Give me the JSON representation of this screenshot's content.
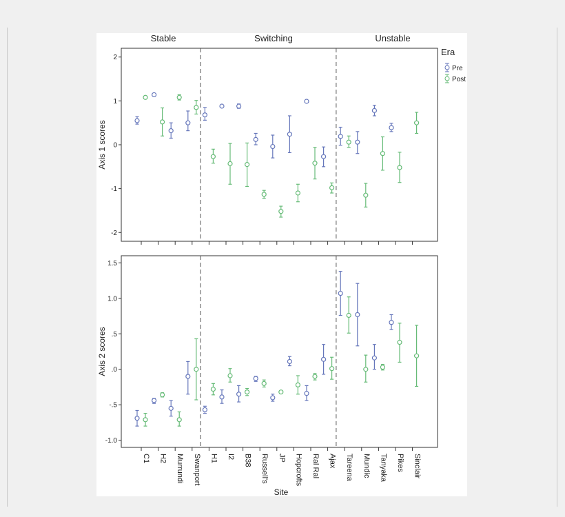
{
  "chart_data": [
    {
      "type": "scatter",
      "subtype": "error-bar",
      "ylabel": "Axis 1 scores",
      "ylim": [
        -2.2,
        2.2
      ],
      "yticks": [
        -2,
        -1,
        0,
        1,
        2
      ],
      "ytick_labels": [
        "-2",
        "-1",
        "0",
        "1",
        "2"
      ],
      "groups": [
        {
          "label": "Stable",
          "sites": [
            "C1",
            "H2",
            "Murrundi",
            "Swanport"
          ]
        },
        {
          "label": "Switching",
          "sites": [
            "H1",
            "I2",
            "B38",
            "Russell's",
            "JP",
            "Hopcrofts",
            "Ral Ral",
            "Ajax"
          ]
        },
        {
          "label": "Unstable",
          "sites": [
            "Tareena",
            "Mundic",
            "Tanyaka",
            "Pikes",
            "Sinclair"
          ]
        }
      ],
      "legend": {
        "title": "Era",
        "position": "top-right",
        "entries": [
          "Pre",
          "Post"
        ]
      },
      "series": [
        {
          "name": "Pre",
          "color": "#6677bb",
          "points": [
            {
              "site": "C1",
              "mean": 0.55,
              "low": 0.47,
              "high": 0.64
            },
            {
              "site": "H2",
              "mean": 1.14,
              "low": 1.11,
              "high": 1.17
            },
            {
              "site": "Murrundi",
              "mean": 0.32,
              "low": 0.15,
              "high": 0.5
            },
            {
              "site": "Swanport",
              "mean": 0.5,
              "low": 0.32,
              "high": 0.77
            },
            {
              "site": "H1",
              "mean": 0.68,
              "low": 0.56,
              "high": 0.85
            },
            {
              "site": "I2",
              "mean": 0.88,
              "low": 0.85,
              "high": 0.91
            },
            {
              "site": "B38",
              "mean": 0.88,
              "low": 0.83,
              "high": 0.93
            },
            {
              "site": "Russell's",
              "mean": 0.12,
              "low": 0.0,
              "high": 0.26
            },
            {
              "site": "JP",
              "mean": -0.04,
              "low": -0.3,
              "high": 0.22
            },
            {
              "site": "Hopcrofts",
              "mean": 0.24,
              "low": -0.18,
              "high": 0.66
            },
            {
              "site": "Ral Ral",
              "mean": 0.99,
              "low": 0.96,
              "high": 1.02
            },
            {
              "site": "Ajax",
              "mean": -0.27,
              "low": -0.5,
              "high": -0.05
            },
            {
              "site": "Tareena",
              "mean": 0.19,
              "low": -0.01,
              "high": 0.4
            },
            {
              "site": "Mundic",
              "mean": 0.06,
              "low": -0.2,
              "high": 0.3
            },
            {
              "site": "Tanyaka",
              "mean": 0.78,
              "low": 0.66,
              "high": 0.9
            },
            {
              "site": "Pikes",
              "mean": 0.39,
              "low": 0.3,
              "high": 0.49
            }
          ]
        },
        {
          "name": "Post",
          "color": "#66bb77",
          "points": [
            {
              "site": "C1",
              "mean": 1.08,
              "low": 1.05,
              "high": 1.11
            },
            {
              "site": "H2",
              "mean": 0.52,
              "low": 0.2,
              "high": 0.84
            },
            {
              "site": "Murrundi",
              "mean": 1.08,
              "low": 1.02,
              "high": 1.14
            },
            {
              "site": "Swanport",
              "mean": 0.85,
              "low": 0.7,
              "high": 1.01
            },
            {
              "site": "H1",
              "mean": -0.27,
              "low": -0.42,
              "high": -0.1
            },
            {
              "site": "I2",
              "mean": -0.43,
              "low": -0.9,
              "high": 0.03
            },
            {
              "site": "B38",
              "mean": -0.45,
              "low": -0.95,
              "high": 0.04
            },
            {
              "site": "Russell's",
              "mean": -1.13,
              "low": -1.22,
              "high": -1.04
            },
            {
              "site": "JP",
              "mean": -1.52,
              "low": -1.65,
              "high": -1.4
            },
            {
              "site": "Hopcrofts",
              "mean": -1.1,
              "low": -1.3,
              "high": -0.9
            },
            {
              "site": "Ral Ral",
              "mean": -0.42,
              "low": -0.78,
              "high": -0.06
            },
            {
              "site": "Ajax",
              "mean": -0.98,
              "low": -1.1,
              "high": -0.87
            },
            {
              "site": "Tareena",
              "mean": 0.06,
              "low": -0.06,
              "high": 0.2
            },
            {
              "site": "Mundic",
              "mean": -1.15,
              "low": -1.42,
              "high": -0.88
            },
            {
              "site": "Tanyaka",
              "mean": -0.2,
              "low": -0.58,
              "high": 0.18
            },
            {
              "site": "Pikes",
              "mean": -0.52,
              "low": -0.86,
              "high": -0.17
            },
            {
              "site": "Sinclair",
              "mean": 0.5,
              "low": 0.26,
              "high": 0.74
            }
          ]
        }
      ]
    },
    {
      "type": "scatter",
      "subtype": "error-bar",
      "xlabel": "Site",
      "ylabel": "Axis 2 scores",
      "ylim": [
        -1.1,
        1.6
      ],
      "yticks": [
        -1.0,
        -0.5,
        0.0,
        0.5,
        1.0,
        1.5
      ],
      "ytick_labels": [
        "-1.0",
        "-.5",
        ".0",
        ".5",
        "1.0",
        "1.5"
      ],
      "categories": [
        "C1",
        "H2",
        "Murrundi",
        "Swanport",
        "H1",
        "I2",
        "B38",
        "Russell's",
        "JP",
        "Hopcrofts",
        "Ral Ral",
        "Ajax",
        "Tareena",
        "Mundic",
        "Tanyaka",
        "Pikes",
        "Sinclair"
      ],
      "series": [
        {
          "name": "Pre",
          "color": "#6677bb",
          "points": [
            {
              "site": "C1",
              "mean": -0.69,
              "low": -0.8,
              "high": -0.58
            },
            {
              "site": "H2",
              "mean": -0.44,
              "low": -0.48,
              "high": -0.41
            },
            {
              "site": "Murrundi",
              "mean": -0.55,
              "low": -0.66,
              "high": -0.44
            },
            {
              "site": "Swanport",
              "mean": -0.1,
              "low": -0.35,
              "high": 0.11
            },
            {
              "site": "H1",
              "mean": -0.57,
              "low": -0.62,
              "high": -0.52
            },
            {
              "site": "I2",
              "mean": -0.39,
              "low": -0.48,
              "high": -0.29
            },
            {
              "site": "B38",
              "mean": -0.35,
              "low": -0.46,
              "high": -0.23
            },
            {
              "site": "Russell's",
              "mean": -0.13,
              "low": -0.17,
              "high": -0.1
            },
            {
              "site": "JP",
              "mean": -0.4,
              "low": -0.45,
              "high": -0.35
            },
            {
              "site": "Hopcrofts",
              "mean": 0.11,
              "low": 0.05,
              "high": 0.18
            },
            {
              "site": "Ral Ral",
              "mean": -0.34,
              "low": -0.44,
              "high": -0.23
            },
            {
              "site": "Ajax",
              "mean": 0.14,
              "low": -0.07,
              "high": 0.35
            },
            {
              "site": "Tareena",
              "mean": 1.07,
              "low": 0.76,
              "high": 1.38
            },
            {
              "site": "Mundic",
              "mean": 0.77,
              "low": 0.33,
              "high": 1.21
            },
            {
              "site": "Tanyaka",
              "mean": 0.16,
              "low": 0.0,
              "high": 0.35
            },
            {
              "site": "Pikes",
              "mean": 0.66,
              "low": 0.56,
              "high": 0.77
            }
          ]
        },
        {
          "name": "Post",
          "color": "#66bb77",
          "points": [
            {
              "site": "C1",
              "mean": -0.71,
              "low": -0.8,
              "high": -0.62
            },
            {
              "site": "H2",
              "mean": -0.36,
              "low": -0.39,
              "high": -0.33
            },
            {
              "site": "Murrundi",
              "mean": -0.71,
              "low": -0.8,
              "high": -0.6
            },
            {
              "site": "Swanport",
              "mean": 0.0,
              "low": -0.43,
              "high": 0.43
            },
            {
              "site": "H1",
              "mean": -0.28,
              "low": -0.36,
              "high": -0.2
            },
            {
              "site": "I2",
              "mean": -0.09,
              "low": -0.18,
              "high": 0.01
            },
            {
              "site": "B38",
              "mean": -0.32,
              "low": -0.37,
              "high": -0.27
            },
            {
              "site": "Russell's",
              "mean": -0.2,
              "low": -0.25,
              "high": -0.15
            },
            {
              "site": "JP",
              "mean": -0.32,
              "low": -0.34,
              "high": -0.3
            },
            {
              "site": "Hopcrofts",
              "mean": -0.22,
              "low": -0.35,
              "high": -0.09
            },
            {
              "site": "Ral Ral",
              "mean": -0.1,
              "low": -0.15,
              "high": -0.06
            },
            {
              "site": "Ajax",
              "mean": 0.01,
              "low": -0.14,
              "high": 0.17
            },
            {
              "site": "Tareena",
              "mean": 0.76,
              "low": 0.51,
              "high": 1.02
            },
            {
              "site": "Mundic",
              "mean": 0.0,
              "low": -0.18,
              "high": 0.2
            },
            {
              "site": "Tanyaka",
              "mean": 0.03,
              "low": -0.01,
              "high": 0.07
            },
            {
              "site": "Pikes",
              "mean": 0.38,
              "low": 0.1,
              "high": 0.65
            },
            {
              "site": "Sinclair",
              "mean": 0.19,
              "low": -0.24,
              "high": 0.62
            }
          ]
        }
      ]
    }
  ]
}
